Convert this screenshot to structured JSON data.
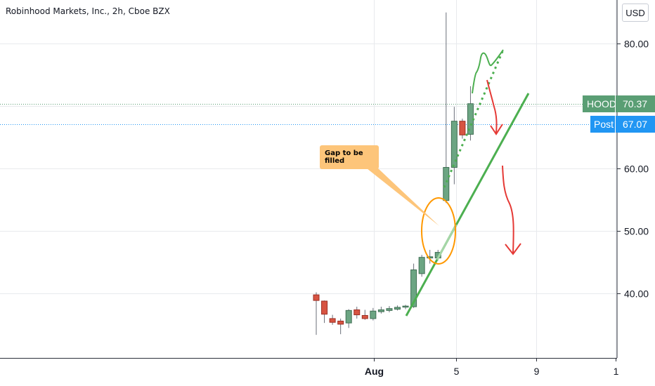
{
  "symbol_title": "Robinhood Markets, Inc., 2h, Cboe BZX",
  "currency_button": "USD",
  "price_badges": [
    {
      "label": "HOOD",
      "value": "70.37",
      "price": 70.37,
      "color": "#5a9e74"
    },
    {
      "label": "Post",
      "value": "67.07",
      "price": 67.07,
      "color": "#2196f3"
    }
  ],
  "annotation": "Gap to be filled",
  "chart_data": {
    "type": "candlestick",
    "y_axis": {
      "ticks": [
        "40.00",
        "50.00",
        "60.00",
        "70.00",
        "80.00"
      ],
      "tick_values": [
        40,
        50,
        60,
        70,
        80
      ],
      "range": [
        29.7,
        87.0
      ]
    },
    "x_axis": {
      "ticks": [
        "Aug",
        "5",
        "9",
        "1"
      ]
    },
    "colors": {
      "up": "#6ca583",
      "down": "#d75442",
      "trend": "#4caf50",
      "arrow": "#e53935",
      "circle": "#ff9800"
    },
    "candles": [
      {
        "o": 39.8,
        "h": 40.2,
        "l": 33.4,
        "c": 38.9
      },
      {
        "o": 38.8,
        "h": 38.9,
        "l": 35.3,
        "c": 36.7
      },
      {
        "o": 36.0,
        "h": 36.6,
        "l": 35.0,
        "c": 35.4
      },
      {
        "o": 35.6,
        "h": 36.0,
        "l": 33.5,
        "c": 35.1
      },
      {
        "o": 35.3,
        "h": 37.5,
        "l": 34.5,
        "c": 37.3
      },
      {
        "o": 37.4,
        "h": 37.9,
        "l": 36.0,
        "c": 36.6
      },
      {
        "o": 36.5,
        "h": 37.4,
        "l": 35.8,
        "c": 36.0
      },
      {
        "o": 36.0,
        "h": 37.7,
        "l": 35.7,
        "c": 37.2
      },
      {
        "o": 37.1,
        "h": 37.9,
        "l": 36.8,
        "c": 37.4
      },
      {
        "o": 37.3,
        "h": 38.0,
        "l": 37.0,
        "c": 37.6
      },
      {
        "o": 37.5,
        "h": 38.1,
        "l": 37.3,
        "c": 37.8
      },
      {
        "o": 37.9,
        "h": 38.2,
        "l": 37.5,
        "c": 38.0
      },
      {
        "o": 37.9,
        "h": 44.8,
        "l": 37.7,
        "c": 43.8
      },
      {
        "o": 43.2,
        "h": 46.2,
        "l": 42.7,
        "c": 45.8
      },
      {
        "o": 45.7,
        "h": 47.0,
        "l": 44.8,
        "c": 45.9
      },
      {
        "o": 45.7,
        "h": 47.0,
        "l": 45.3,
        "c": 46.6
      },
      {
        "o": 54.9,
        "h": 85.0,
        "l": 54.5,
        "c": 60.2
      },
      {
        "o": 60.2,
        "h": 69.9,
        "l": 57.5,
        "c": 67.6
      },
      {
        "o": 67.6,
        "h": 68.0,
        "l": 64.8,
        "c": 65.4
      },
      {
        "o": 65.5,
        "h": 73.2,
        "l": 64.5,
        "c": 70.4
      }
    ]
  }
}
